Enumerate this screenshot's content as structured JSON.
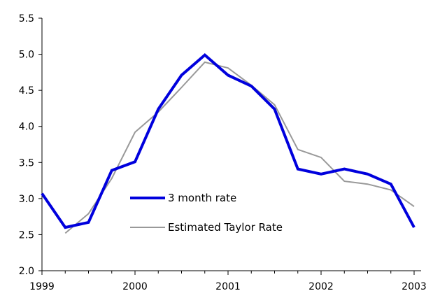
{
  "chart_data": {
    "type": "line",
    "x_ticks": [
      "1999",
      "2000",
      "2001",
      "2002",
      "2003"
    ],
    "y_ticks": [
      "2.0",
      "2.5",
      "3.0",
      "3.5",
      "4.0",
      "4.5",
      "5.0",
      "5.5"
    ],
    "xlim": [
      1999,
      2003
    ],
    "ylim": [
      2.0,
      5.5
    ],
    "grid": false,
    "legend_position": "center",
    "series": [
      {
        "name": "3 month rate",
        "color": "#0000dd",
        "x": [
          1999.0,
          1999.25,
          1999.5,
          1999.75,
          2000.0,
          2000.25,
          2000.5,
          2000.75,
          2001.0,
          2001.25,
          2001.5,
          2001.75,
          2002.0,
          2002.25,
          2002.5,
          2002.75,
          2003.0
        ],
        "y": [
          3.07,
          2.6,
          2.67,
          3.39,
          3.51,
          4.24,
          4.71,
          4.99,
          4.71,
          4.56,
          4.24,
          3.41,
          3.34,
          3.41,
          3.34,
          3.2,
          2.6
        ]
      },
      {
        "name": "Estimated Taylor Rate",
        "color": "#999999",
        "x": [
          1999.25,
          1999.5,
          1999.75,
          2000.0,
          2000.25,
          2000.5,
          2000.75,
          2001.0,
          2001.25,
          2001.5,
          2001.75,
          2002.0,
          2002.25,
          2002.5,
          2002.75,
          2003.0
        ],
        "y": [
          2.52,
          2.79,
          3.28,
          3.92,
          4.2,
          4.54,
          4.89,
          4.81,
          4.57,
          4.3,
          3.68,
          3.57,
          3.24,
          3.2,
          3.12,
          2.89
        ]
      }
    ]
  }
}
